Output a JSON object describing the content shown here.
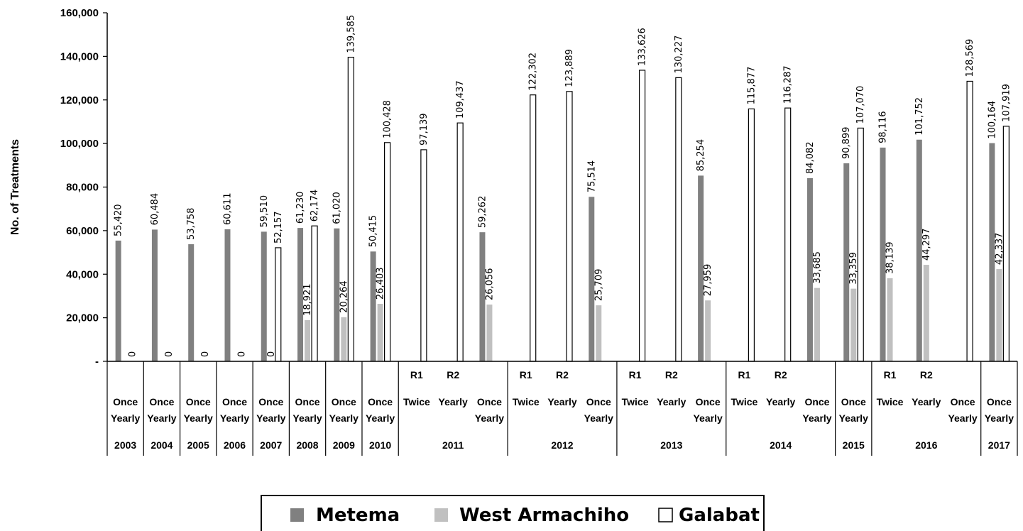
{
  "chart_data": {
    "type": "bar",
    "ylabel": "No. of Treatments",
    "ylim": [
      0,
      160000
    ],
    "y_ticks": [
      "-",
      "20,000",
      "40,000",
      "60,000",
      "80,000",
      "100,000",
      "120,000",
      "140,000",
      "160,000"
    ],
    "series": [
      {
        "name": "Metema",
        "color": "#808080"
      },
      {
        "name": "West Armachiho",
        "color": "#c0c0c0"
      },
      {
        "name": "Galabat",
        "color": "#ffffff"
      }
    ],
    "categories": [
      {
        "round": "",
        "freq": "Once Yearly",
        "year": "2003",
        "values": [
          55420,
          null,
          0
        ],
        "labels": [
          "55,420",
          "",
          "0"
        ]
      },
      {
        "round": "",
        "freq": "Once Yearly",
        "year": "2004",
        "values": [
          60484,
          null,
          0
        ],
        "labels": [
          "60,484",
          "",
          "0"
        ]
      },
      {
        "round": "",
        "freq": "Once Yearly",
        "year": "2005",
        "values": [
          53758,
          null,
          0
        ],
        "labels": [
          "53,758",
          "",
          "0"
        ]
      },
      {
        "round": "",
        "freq": "Once Yearly",
        "year": "2006",
        "values": [
          60611,
          null,
          0
        ],
        "labels": [
          "60,611",
          "",
          "0"
        ]
      },
      {
        "round": "",
        "freq": "Once Yearly",
        "year": "2007",
        "values": [
          59510,
          null,
          52157
        ],
        "labels": [
          "59,510",
          "0",
          "52,157"
        ]
      },
      {
        "round": "",
        "freq": "Once Yearly",
        "year": "2008",
        "values": [
          61230,
          18921,
          62174
        ],
        "labels": [
          "61,230",
          "18,921",
          "62,174"
        ]
      },
      {
        "round": "",
        "freq": "Once Yearly",
        "year": "2009",
        "values": [
          61020,
          20264,
          139585
        ],
        "labels": [
          "61,020",
          "20,264",
          "139,585"
        ]
      },
      {
        "round": "",
        "freq": "Once Yearly",
        "year": "2010",
        "values": [
          50415,
          26403,
          100428
        ],
        "labels": [
          "50,415",
          "26,403",
          "100,428"
        ]
      },
      {
        "round": "R1",
        "freq": "Twice",
        "year": "2011",
        "values": [
          null,
          null,
          97139
        ],
        "labels": [
          "",
          "",
          "97,139"
        ]
      },
      {
        "round": "R2",
        "freq": "Yearly",
        "year": "2011",
        "values": [
          null,
          null,
          109437
        ],
        "labels": [
          "",
          "",
          "109,437"
        ]
      },
      {
        "round": "",
        "freq": "Once Yearly",
        "year": "2011",
        "values": [
          59262,
          26056,
          null
        ],
        "labels": [
          "59,262",
          "26,056",
          ""
        ]
      },
      {
        "round": "R1",
        "freq": "Twice",
        "year": "2012",
        "values": [
          null,
          null,
          122302
        ],
        "labels": [
          "",
          "",
          "122,302"
        ]
      },
      {
        "round": "R2",
        "freq": "Yearly",
        "year": "2012",
        "values": [
          null,
          null,
          123889
        ],
        "labels": [
          "",
          "",
          "123,889"
        ]
      },
      {
        "round": "",
        "freq": "Once Yearly",
        "year": "2012",
        "values": [
          75514,
          25709,
          null
        ],
        "labels": [
          "75,514",
          "25,709",
          ""
        ]
      },
      {
        "round": "R1",
        "freq": "Twice",
        "year": "2013",
        "values": [
          null,
          null,
          133626
        ],
        "labels": [
          "",
          "",
          "133,626"
        ]
      },
      {
        "round": "R2",
        "freq": "Yearly",
        "year": "2013",
        "values": [
          null,
          null,
          130227
        ],
        "labels": [
          "",
          "",
          "130,227"
        ]
      },
      {
        "round": "",
        "freq": "Once Yearly",
        "year": "2013",
        "values": [
          85254,
          27959,
          null
        ],
        "labels": [
          "85,254",
          "27,959",
          ""
        ]
      },
      {
        "round": "R1",
        "freq": "Twice",
        "year": "2014",
        "values": [
          null,
          null,
          115877
        ],
        "labels": [
          "",
          "",
          "115,877"
        ]
      },
      {
        "round": "R2",
        "freq": "Yearly",
        "year": "2014",
        "values": [
          null,
          null,
          116287
        ],
        "labels": [
          "",
          "",
          "116,287"
        ]
      },
      {
        "round": "",
        "freq": "Once Yearly",
        "year": "2014",
        "values": [
          84082,
          33685,
          null
        ],
        "labels": [
          "84,082",
          "33,685",
          ""
        ]
      },
      {
        "round": "",
        "freq": "Once Yearly",
        "year": "2015",
        "values": [
          90899,
          33359,
          107070
        ],
        "labels": [
          "90,899",
          "33,359",
          "107,070"
        ]
      },
      {
        "round": "R1",
        "freq": "Twice",
        "year": "2016",
        "values": [
          98116,
          38139,
          null
        ],
        "labels": [
          "98,116",
          "38,139",
          ""
        ]
      },
      {
        "round": "R2",
        "freq": "Yearly",
        "year": "2016",
        "values": [
          101752,
          44297,
          null
        ],
        "labels": [
          "101,752",
          "44,297",
          ""
        ]
      },
      {
        "round": "",
        "freq": "Once Yearly",
        "year": "2016",
        "values": [
          null,
          null,
          128569
        ],
        "labels": [
          "",
          "",
          "128,569"
        ]
      },
      {
        "round": "",
        "freq": "Once Yearly",
        "year": "2017",
        "values": [
          100164,
          42337,
          107919
        ],
        "labels": [
          "100,164",
          "42,337",
          "107,919"
        ]
      }
    ],
    "year_groups": [
      {
        "label": "2003",
        "span": 1
      },
      {
        "label": "2004",
        "span": 1
      },
      {
        "label": "2005",
        "span": 1
      },
      {
        "label": "2006",
        "span": 1
      },
      {
        "label": "2007",
        "span": 1
      },
      {
        "label": "2008",
        "span": 1
      },
      {
        "label": "2009",
        "span": 1
      },
      {
        "label": "2010",
        "span": 1
      },
      {
        "label": "2011",
        "span": 3
      },
      {
        "label": "2012",
        "span": 3
      },
      {
        "label": "2013",
        "span": 3
      },
      {
        "label": "2014",
        "span": 3
      },
      {
        "label": "2015",
        "span": 1
      },
      {
        "label": "2016",
        "span": 3
      },
      {
        "label": "2017",
        "span": 1
      }
    ],
    "legend_position": "bottom"
  }
}
